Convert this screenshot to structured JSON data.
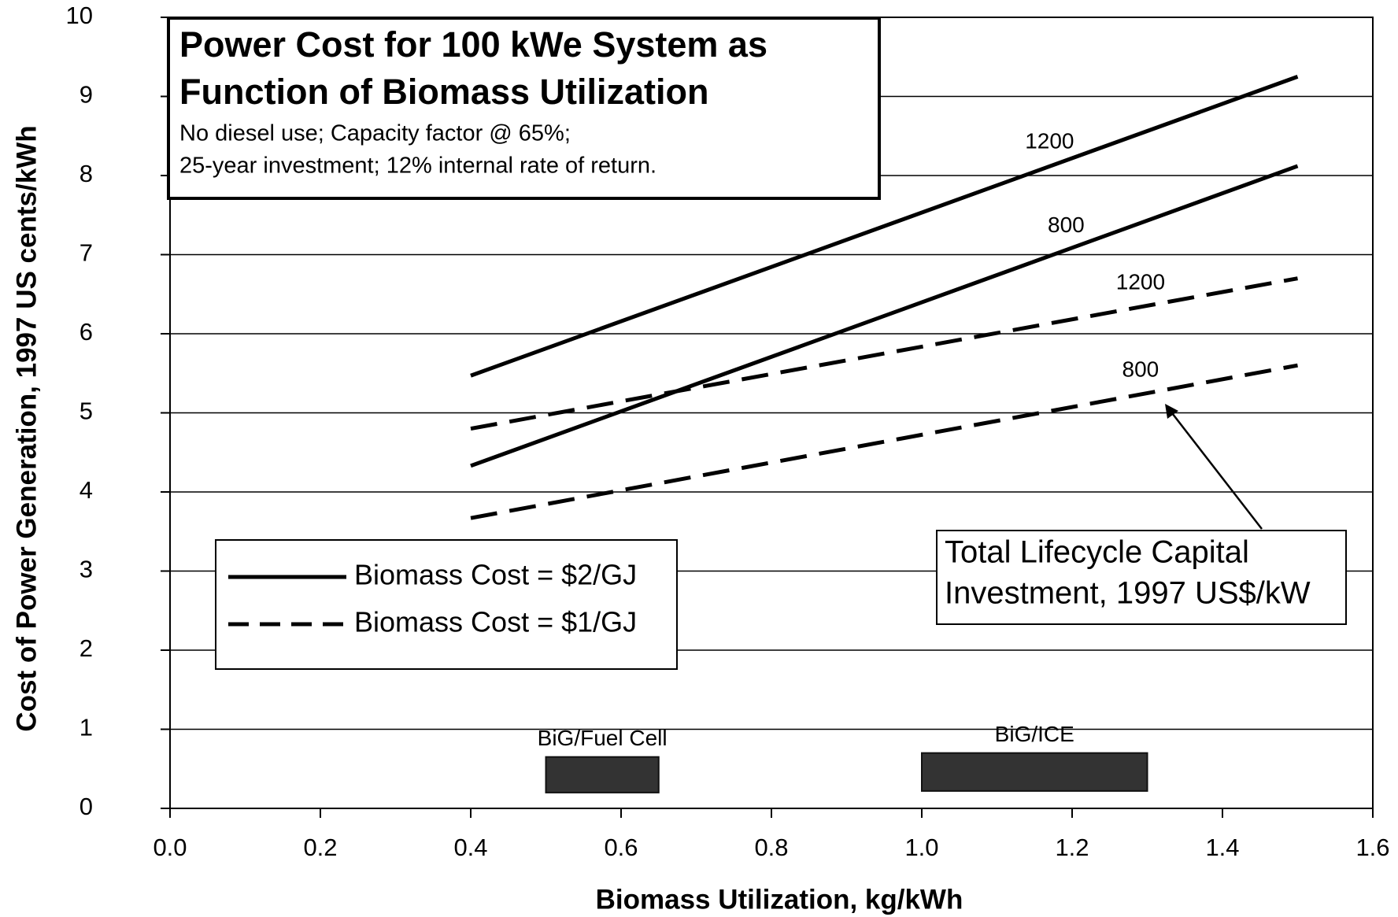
{
  "chart_data": {
    "type": "line",
    "title": [
      "Power Cost for 100 kWe System as",
      "Function of Biomass Utilization"
    ],
    "subtitle": [
      "No diesel use; Capacity factor @ 65%;",
      "25-year investment; 12% internal rate of return."
    ],
    "x_label": "Biomass Utilization, kg/kWh",
    "y_label": "Cost of Power Generation, 1997 US cents/kWh",
    "xlim": [
      0,
      1.6
    ],
    "ylim": [
      0,
      10
    ],
    "xticks": [
      {
        "value": 0,
        "label": "0.0"
      },
      0.2,
      0.4,
      0.6,
      0.8,
      {
        "value": 1,
        "label": "1.0"
      },
      1.2,
      1.4,
      1.6
    ],
    "yticks": [
      0,
      1,
      2,
      3,
      4,
      5,
      6,
      7,
      8,
      9,
      10
    ],
    "grid": true,
    "series": [
      {
        "name": "Biomass Cost = $2/GJ",
        "color": "#000000",
        "dashed": false,
        "lines": [
          {
            "label": "1200",
            "x": [
              0.4,
              1.5
            ],
            "values": [
              5.47,
              9.25
            ]
          },
          {
            "label": "800",
            "x": [
              0.4,
              1.5
            ],
            "values": [
              4.33,
              8.12
            ]
          }
        ]
      },
      {
        "name": "Biomass Cost = $1/GJ",
        "color": "#000000",
        "dashed": true,
        "lines": [
          {
            "label": "1200",
            "x": [
              0.4,
              1.5
            ],
            "values": [
              4.8,
              6.7
            ]
          },
          {
            "label": "800",
            "x": [
              0.4,
              1.5
            ],
            "values": [
              3.67,
              5.6
            ]
          }
        ]
      }
    ],
    "ranges": [
      {
        "label": "BiG/Fuel Cell",
        "x": [
          0.5,
          0.65
        ],
        "y": [
          0.2,
          0.65
        ]
      },
      {
        "label": "BiG/ICE",
        "x": [
          1.0,
          1.3
        ],
        "y": [
          0.22,
          0.7
        ]
      }
    ],
    "annotation": [
      "Total Lifecycle Capital",
      "Investment, 1997 US$/kW"
    ]
  }
}
